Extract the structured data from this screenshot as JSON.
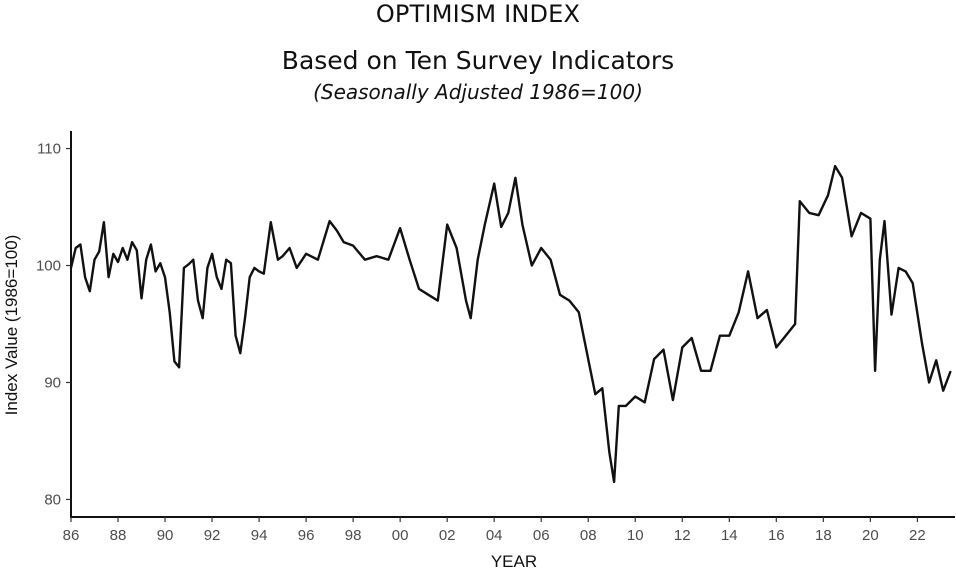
{
  "title": "OPTIMISM INDEX",
  "subtitle": "Based on Ten Survey Indicators",
  "subsubtitle": "(Seasonally Adjusted 1986=100)",
  "chart_data": {
    "type": "line",
    "xlabel": "YEAR",
    "ylabel": "Index Value (1986=100)",
    "xlim": [
      1986,
      2023.6
    ],
    "ylim": [
      78.5,
      111.5
    ],
    "grid": false,
    "x_tick_labels": [
      "86",
      "88",
      "90",
      "92",
      "94",
      "96",
      "98",
      "00",
      "02",
      "04",
      "06",
      "08",
      "10",
      "12",
      "14",
      "16",
      "18",
      "20",
      "22"
    ],
    "y_tick_labels": [
      "80",
      "90",
      "100",
      "110"
    ],
    "series": [
      {
        "x": [
          1986.0,
          1986.2,
          1986.4,
          1986.6,
          1986.8,
          1987.0,
          1987.2,
          1987.4,
          1987.6,
          1987.8,
          1988.0,
          1988.2,
          1988.4,
          1988.6,
          1988.8,
          1989.0,
          1989.2,
          1989.4,
          1989.6,
          1989.8,
          1990.0,
          1990.2,
          1990.4,
          1990.6,
          1990.8,
          1991.0,
          1991.2,
          1991.4,
          1991.6,
          1991.8,
          1992.0,
          1992.2,
          1992.4,
          1992.6,
          1992.8,
          1993.0,
          1993.2,
          1993.4,
          1993.6,
          1993.8,
          1994.0,
          1994.2,
          1994.5,
          1994.8,
          1995.0,
          1995.3,
          1995.6,
          1996.0,
          1996.5,
          1997.0,
          1997.3,
          1997.6,
          1998.0,
          1998.5,
          1999.0,
          1999.5,
          2000.0,
          2000.4,
          2000.8,
          2001.2,
          2001.6,
          2002.0,
          2002.4,
          2002.8,
          2003.0,
          2003.3,
          2003.6,
          2004.0,
          2004.3,
          2004.6,
          2004.9,
          2005.2,
          2005.6,
          2006.0,
          2006.4,
          2006.8,
          2007.2,
          2007.6,
          2008.0,
          2008.3,
          2008.6,
          2008.9,
          2009.1,
          2009.3,
          2009.6,
          2010.0,
          2010.4,
          2010.8,
          2011.2,
          2011.6,
          2012.0,
          2012.4,
          2012.8,
          2013.2,
          2013.6,
          2014.0,
          2014.4,
          2014.8,
          2015.2,
          2015.6,
          2016.0,
          2016.4,
          2016.8,
          2017.0,
          2017.4,
          2017.8,
          2018.2,
          2018.5,
          2018.8,
          2019.2,
          2019.6,
          2020.0,
          2020.2,
          2020.4,
          2020.6,
          2020.9,
          2021.2,
          2021.5,
          2021.8,
          2022.2,
          2022.5,
          2022.8,
          2023.1,
          2023.4
        ],
        "y": [
          99.8,
          101.5,
          101.8,
          99.0,
          97.8,
          100.5,
          101.2,
          103.7,
          99.0,
          101.0,
          100.3,
          101.5,
          100.5,
          102.0,
          101.3,
          97.2,
          100.5,
          101.8,
          99.5,
          100.2,
          99.0,
          96.0,
          91.8,
          91.3,
          99.8,
          100.1,
          100.5,
          97.0,
          95.5,
          99.8,
          101.0,
          99.0,
          98.0,
          100.5,
          100.2,
          94.0,
          92.5,
          95.5,
          99.0,
          99.8,
          99.5,
          99.3,
          103.7,
          100.5,
          100.8,
          101.5,
          99.8,
          101.0,
          100.5,
          103.8,
          103.0,
          102.0,
          101.7,
          100.5,
          100.8,
          100.5,
          103.2,
          100.5,
          98.0,
          97.5,
          97.0,
          103.5,
          101.5,
          97.0,
          95.5,
          100.5,
          103.5,
          107.0,
          103.3,
          104.5,
          107.5,
          103.5,
          100.0,
          101.5,
          100.5,
          97.5,
          97.0,
          96.0,
          92.0,
          89.0,
          89.5,
          84.0,
          81.5,
          88.0,
          88.0,
          88.8,
          88.3,
          92.0,
          92.8,
          88.5,
          93.0,
          93.8,
          91.0,
          91.0,
          94.0,
          94.0,
          96.0,
          99.5,
          95.5,
          96.2,
          93.0,
          94.0,
          95.0,
          105.5,
          104.5,
          104.3,
          106.0,
          108.5,
          107.5,
          102.5,
          104.5,
          104.0,
          91.0,
          100.5,
          103.8,
          95.8,
          99.8,
          99.5,
          98.5,
          93.3,
          90.0,
          91.9,
          89.3,
          90.9
        ]
      }
    ]
  }
}
